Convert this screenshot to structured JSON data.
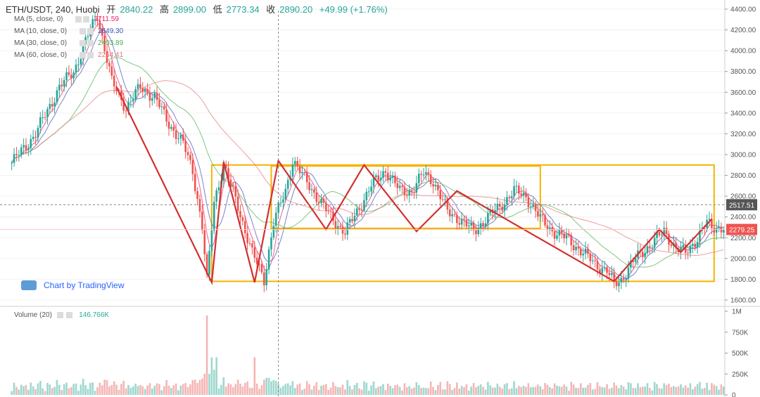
{
  "header": {
    "symbol": "ETH/USDT, 240, Huobi",
    "open_label": "开",
    "open": "2840.22",
    "high_label": "高",
    "high": "2899.00",
    "low_label": "低",
    "low": "2773.34",
    "close_label": "收",
    "close": "2890.20",
    "change": "+49.99 (+1.76%)"
  },
  "ma_legend": [
    {
      "label": "MA (5, close, 0)",
      "value": "2711.59",
      "color": "#e91e63"
    },
    {
      "label": "MA (10, close, 0)",
      "value": "2649.30",
      "color": "#3f51b5"
    },
    {
      "label": "MA (30, close, 0)",
      "value": "2403.89",
      "color": "#4caf50"
    },
    {
      "label": "MA (60, close, 0)",
      "value": "2264.41",
      "color": "#e57373"
    }
  ],
  "watermark": "Chart by TradingView",
  "volume_legend": {
    "label": "Volume (20)",
    "value": "146.766K"
  },
  "colors": {
    "up": "#26a69a",
    "down": "#ef5350",
    "zigzag": "#d32f2f",
    "box": "#f4b400"
  },
  "chart_data": {
    "type": "candlestick",
    "price_axis": {
      "min": 1600,
      "max": 4400,
      "ticks": [
        "4400.00",
        "4200.00",
        "4000.00",
        "3800.00",
        "3600.00",
        "3400.00",
        "3200.00",
        "3000.00",
        "2800.00",
        "2600.00",
        "2400.00",
        "2200.00",
        "2000.00",
        "1800.00",
        "1600.00"
      ]
    },
    "volume_axis": {
      "ticks": [
        "1M",
        "750K",
        "500K",
        "250K",
        "0"
      ]
    },
    "price_labels": [
      {
        "value": "2517.51",
        "price": 2517.51,
        "bg": "#555555"
      },
      {
        "value": "2279.25",
        "price": 2279.25,
        "bg": "#ef5350"
      }
    ],
    "price_path": [
      [
        0,
        2920
      ],
      [
        10,
        3200
      ],
      [
        20,
        3650
      ],
      [
        26,
        3800
      ],
      [
        33,
        4200
      ],
      [
        36,
        4350
      ],
      [
        42,
        3700
      ],
      [
        48,
        3450
      ],
      [
        54,
        3650
      ],
      [
        60,
        3550
      ],
      [
        66,
        3300
      ],
      [
        72,
        3100
      ],
      [
        76,
        2850
      ],
      [
        80,
        2300
      ],
      [
        82,
        1780
      ],
      [
        85,
        2550
      ],
      [
        89,
        2900
      ],
      [
        95,
        2500
      ],
      [
        101,
        2050
      ],
      [
        106,
        1800
      ],
      [
        110,
        2350
      ],
      [
        115,
        2650
      ],
      [
        118,
        2950
      ],
      [
        122,
        2800
      ],
      [
        128,
        2600
      ],
      [
        134,
        2400
      ],
      [
        140,
        2250
      ],
      [
        145,
        2450
      ],
      [
        151,
        2700
      ],
      [
        157,
        2850
      ],
      [
        163,
        2650
      ],
      [
        168,
        2650
      ],
      [
        173,
        2820
      ],
      [
        177,
        2750
      ],
      [
        183,
        2450
      ],
      [
        188,
        2380
      ],
      [
        194,
        2260
      ],
      [
        199,
        2380
      ],
      [
        205,
        2500
      ],
      [
        211,
        2650
      ],
      [
        216,
        2600
      ],
      [
        222,
        2380
      ],
      [
        228,
        2250
      ],
      [
        234,
        2180
      ],
      [
        240,
        2050
      ],
      [
        245,
        1950
      ],
      [
        250,
        1880
      ],
      [
        253,
        1750
      ],
      [
        256,
        1800
      ],
      [
        262,
        2000
      ],
      [
        269,
        2150
      ],
      [
        274,
        2260
      ],
      [
        279,
        2100
      ],
      [
        283,
        2050
      ],
      [
        288,
        2200
      ],
      [
        292,
        2340
      ],
      [
        294,
        2300
      ]
    ],
    "ma_overlays": [
      {
        "name": "MA (5, close, 0)",
        "color": "#e91e63",
        "lag": 2
      },
      {
        "name": "MA (10, close, 0)",
        "color": "#3f51b5",
        "lag": 4
      },
      {
        "name": "MA (30, close, 0)",
        "color": "#4caf50",
        "lag": 12
      },
      {
        "name": "MA (60, close, 0)",
        "color": "#e57373",
        "lag": 26
      }
    ],
    "zigzag": [
      [
        44,
        3650
      ],
      [
        84,
        1770
      ],
      [
        89,
        2930
      ],
      [
        102,
        1770
      ],
      [
        112,
        2940
      ],
      [
        132,
        2280
      ],
      [
        148,
        2900
      ],
      [
        170,
        2260
      ],
      [
        187,
        2650
      ],
      [
        253,
        1780
      ],
      [
        272,
        2280
      ],
      [
        281,
        2060
      ],
      [
        294,
        2380
      ]
    ],
    "boxes": [
      {
        "x1": 84,
        "x2": 295,
        "top": 2900,
        "bottom": 1780
      },
      {
        "x1": 109,
        "x2": 222,
        "top": 2890,
        "bottom": 2290
      }
    ],
    "dashed_levels": [
      2517.51
    ],
    "crosshair_x": 112
  }
}
